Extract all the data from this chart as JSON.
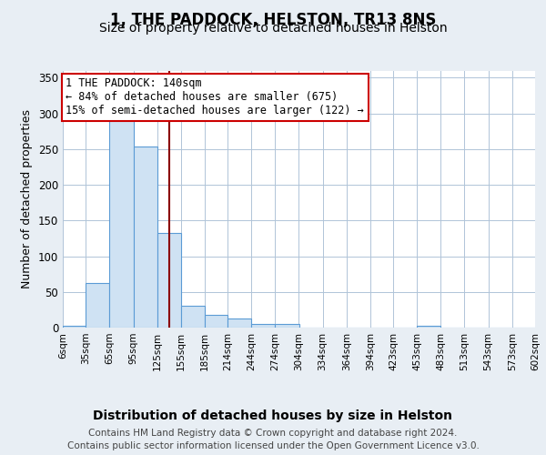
{
  "title": "1, THE PADDOCK, HELSTON, TR13 8NS",
  "subtitle": "Size of property relative to detached houses in Helston",
  "xlabel": "Distribution of detached houses by size in Helston",
  "ylabel": "Number of detached properties",
  "footer_line1": "Contains HM Land Registry data © Crown copyright and database right 2024.",
  "footer_line2": "Contains public sector information licensed under the Open Government Licence v3.0.",
  "bins": [
    "6sqm",
    "35sqm",
    "65sqm",
    "95sqm",
    "125sqm",
    "155sqm",
    "185sqm",
    "214sqm",
    "244sqm",
    "274sqm",
    "304sqm",
    "334sqm",
    "364sqm",
    "394sqm",
    "423sqm",
    "453sqm",
    "483sqm",
    "513sqm",
    "543sqm",
    "573sqm",
    "602sqm"
  ],
  "bar_left_edges": [
    6,
    35,
    65,
    95,
    125,
    155,
    185,
    214,
    244,
    274,
    304,
    334,
    364,
    394,
    423,
    453,
    483,
    513,
    543,
    573
  ],
  "bar_widths": [
    29,
    30,
    30,
    30,
    30,
    30,
    29,
    30,
    30,
    30,
    30,
    30,
    30,
    29,
    30,
    30,
    30,
    30,
    30,
    29
  ],
  "bar_heights": [
    2,
    62,
    290,
    253,
    132,
    30,
    18,
    13,
    5,
    5,
    0,
    0,
    0,
    0,
    0,
    3,
    0,
    0,
    0,
    0
  ],
  "bar_color": "#cfe2f3",
  "bar_edge_color": "#5b9bd5",
  "property_size": 140,
  "annotation_text": "1 THE PADDOCK: 140sqm\n← 84% of detached houses are smaller (675)\n15% of semi-detached houses are larger (122) →",
  "annotation_box_color": "white",
  "annotation_box_edge_color": "#cc0000",
  "vline_color": "#8b0000",
  "ylim": [
    0,
    360
  ],
  "xlim": [
    6,
    602
  ],
  "background_color": "#e8eef4",
  "plot_background": "white",
  "grid_color": "#b0c4d8",
  "title_fontsize": 12,
  "subtitle_fontsize": 10,
  "xlabel_fontsize": 10,
  "ylabel_fontsize": 9,
  "tick_fontsize": 7.5,
  "annotation_fontsize": 8.5,
  "footer_fontsize": 7.5
}
